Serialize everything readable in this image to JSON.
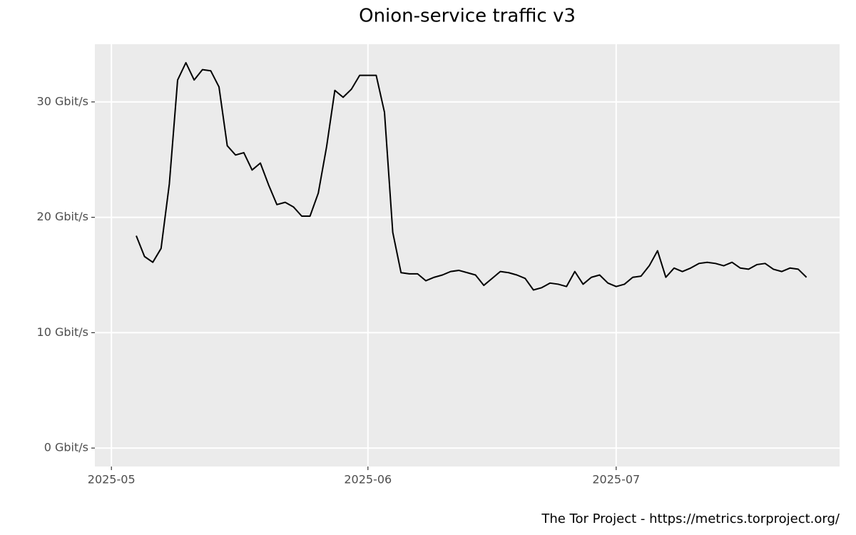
{
  "chart_data": {
    "type": "line",
    "title": "Onion-service traffic v3",
    "caption": "The Tor Project - https://metrics.torproject.org/",
    "color": "#000000",
    "grid": true,
    "x": [
      "2025-05-04",
      "2025-05-05",
      "2025-05-06",
      "2025-05-07",
      "2025-05-08",
      "2025-05-09",
      "2025-05-10",
      "2025-05-11",
      "2025-05-12",
      "2025-05-13",
      "2025-05-14",
      "2025-05-15",
      "2025-05-16",
      "2025-05-17",
      "2025-05-18",
      "2025-05-19",
      "2025-05-20",
      "2025-05-21",
      "2025-05-22",
      "2025-05-23",
      "2025-05-24",
      "2025-05-25",
      "2025-05-26",
      "2025-05-27",
      "2025-05-28",
      "2025-05-29",
      "2025-05-30",
      "2025-05-31",
      "2025-06-01",
      "2025-06-02",
      "2025-06-03",
      "2025-06-04",
      "2025-06-05",
      "2025-06-06",
      "2025-06-07",
      "2025-06-08",
      "2025-06-09",
      "2025-06-10",
      "2025-06-11",
      "2025-06-12",
      "2025-06-13",
      "2025-06-14",
      "2025-06-15",
      "2025-06-16",
      "2025-06-17",
      "2025-06-18",
      "2025-06-19",
      "2025-06-20",
      "2025-06-21",
      "2025-06-22",
      "2025-06-23",
      "2025-06-24",
      "2025-06-25",
      "2025-06-26",
      "2025-06-27",
      "2025-06-28",
      "2025-06-29",
      "2025-06-30",
      "2025-07-01",
      "2025-07-02",
      "2025-07-03",
      "2025-07-04",
      "2025-07-05",
      "2025-07-06",
      "2025-07-07",
      "2025-07-08",
      "2025-07-09",
      "2025-07-10",
      "2025-07-11",
      "2025-07-12",
      "2025-07-13",
      "2025-07-14",
      "2025-07-15",
      "2025-07-16",
      "2025-07-17",
      "2025-07-18",
      "2025-07-19",
      "2025-07-20",
      "2025-07-21",
      "2025-07-22",
      "2025-07-23",
      "2025-07-24"
    ],
    "values": [
      18.4,
      16.6,
      16.1,
      17.3,
      22.9,
      31.9,
      33.4,
      31.9,
      32.8,
      32.7,
      31.3,
      26.2,
      25.4,
      25.6,
      24.1,
      24.7,
      22.8,
      21.1,
      21.3,
      20.9,
      20.1,
      20.1,
      22.1,
      26.1,
      31.0,
      30.4,
      31.1,
      32.3,
      32.3,
      32.3,
      29.1,
      18.7,
      15.2,
      15.1,
      15.1,
      14.5,
      14.8,
      15.0,
      15.3,
      15.4,
      15.2,
      15.0,
      14.1,
      14.7,
      15.3,
      15.2,
      15.0,
      14.7,
      13.7,
      13.9,
      14.3,
      14.2,
      14.0,
      15.3,
      14.2,
      14.8,
      15.0,
      14.3,
      14.0,
      14.2,
      14.8,
      14.9,
      15.8,
      17.1,
      14.8,
      15.6,
      15.3,
      15.6,
      16.0,
      16.1,
      16.0,
      15.8,
      16.1,
      15.6,
      15.5,
      15.9,
      16.0,
      15.5,
      15.3,
      15.6,
      15.5,
      14.8
    ],
    "xlim": [
      "2025-04-29",
      "2025-07-28"
    ],
    "xticks": [
      {
        "value": "2025-05-01",
        "label": "2025-05"
      },
      {
        "value": "2025-06-01",
        "label": "2025-06"
      },
      {
        "value": "2025-07-01",
        "label": "2025-07"
      }
    ],
    "ylim": [
      -1.6,
      35.0
    ],
    "yticks": [
      {
        "value": 0,
        "label": "0 Gbit/s"
      },
      {
        "value": 10,
        "label": "10 Gbit/s"
      },
      {
        "value": 20,
        "label": "20 Gbit/s"
      },
      {
        "value": 30,
        "label": "30 Gbit/s"
      }
    ]
  }
}
